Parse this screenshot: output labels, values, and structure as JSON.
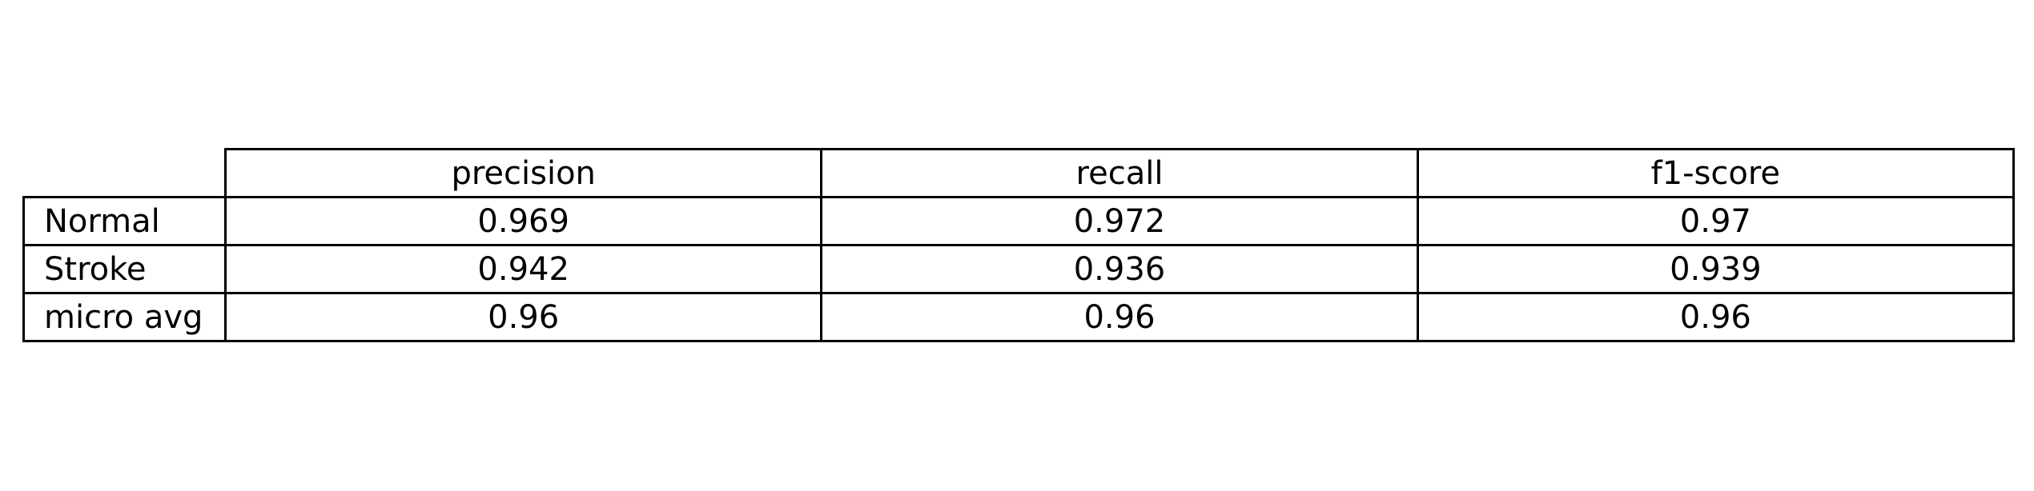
{
  "chart_data": {
    "type": "table",
    "columns": [
      "precision",
      "recall",
      "f1-score"
    ],
    "rows": [
      {
        "label": "Normal",
        "values": [
          "0.969",
          "0.972",
          "0.97"
        ]
      },
      {
        "label": "Stroke",
        "values": [
          "0.942",
          "0.936",
          "0.939"
        ]
      },
      {
        "label": "micro avg",
        "values": [
          "0.96",
          "0.96",
          "0.96"
        ]
      }
    ]
  }
}
